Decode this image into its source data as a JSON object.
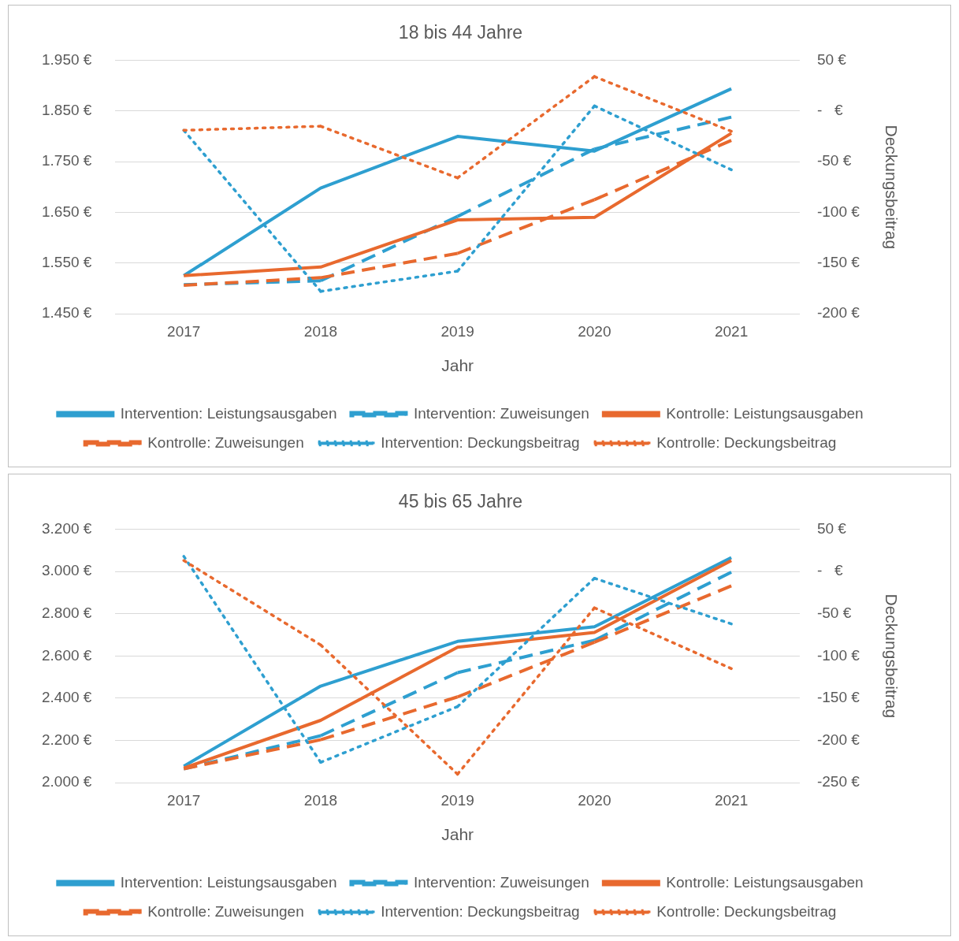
{
  "chart_data": [
    {
      "type": "line",
      "title": "18 bis 44 Jahre",
      "xlabel": "Jahr",
      "y2label": "Deckungsbeitrag",
      "categories": [
        "2017",
        "2018",
        "2019",
        "2020",
        "2021"
      ],
      "series": [
        {
          "name": "Intervention: Leistungsausgaben",
          "color": "#2e9fd0",
          "line_style": "solid",
          "values": [
            1525,
            1698,
            1800,
            1771,
            1894
          ]
        },
        {
          "name": "Intervention: Zuweisungen",
          "color": "#2e9fd0",
          "line_style": "dashed",
          "values": [
            1507,
            1515,
            1642,
            1775,
            1838
          ]
        },
        {
          "name": "Kontrolle: Leistungsausgaben",
          "color": "#e8692e",
          "line_style": "solid",
          "values": [
            1525,
            1542,
            1635,
            1640,
            1806
          ]
        },
        {
          "name": "Kontrolle: Zuweisungen",
          "color": "#e8692e",
          "line_style": "dashed",
          "values": [
            1506,
            1521,
            1569,
            1675,
            1792
          ]
        },
        {
          "name": "Intervention: Deckungsbeitrag",
          "color": "#2e9fd0",
          "line_style": "dotted",
          "axis": "y2",
          "values": [
            -19,
            -178,
            -158,
            5,
            -58
          ]
        },
        {
          "name": "Kontrolle: Deckungsbeitrag",
          "color": "#e8692e",
          "line_style": "dotted",
          "axis": "y2",
          "values": [
            -19,
            -15,
            -66,
            34,
            -20
          ]
        }
      ],
      "ylim": [
        1450,
        1950
      ],
      "yticks": [
        {
          "value": 1450,
          "label": "1.450 €"
        },
        {
          "value": 1550,
          "label": "1.550 €"
        },
        {
          "value": 1650,
          "label": "1.650 €"
        },
        {
          "value": 1750,
          "label": "1.750 €"
        },
        {
          "value": 1850,
          "label": "1.850 €"
        },
        {
          "value": 1950,
          "label": "1.950 €"
        }
      ],
      "y2lim": [
        -200,
        50
      ],
      "y2ticks": [
        {
          "value": -200,
          "label": "-200 €"
        },
        {
          "value": -150,
          "label": "-150 €"
        },
        {
          "value": -100,
          "label": "-100 €"
        },
        {
          "value": -50,
          "label": "-50 €"
        },
        {
          "value": 0,
          "label": "-   €"
        },
        {
          "value": 50,
          "label": "50 €"
        }
      ],
      "grid": "y",
      "legend": "bottom",
      "marker": "none"
    },
    {
      "type": "line",
      "title": "45 bis 65 Jahre",
      "xlabel": "Jahr",
      "y2label": "Deckungsbeitrag",
      "categories": [
        "2017",
        "2018",
        "2019",
        "2020",
        "2021"
      ],
      "series": [
        {
          "name": "Intervention: Leistungsausgaben",
          "color": "#2e9fd0",
          "line_style": "solid",
          "values": [
            2078,
            2457,
            2669,
            2738,
            3066
          ]
        },
        {
          "name": "Intervention: Zuweisungen",
          "color": "#2e9fd0",
          "line_style": "dashed",
          "values": [
            2065,
            2222,
            2521,
            2674,
            2997
          ]
        },
        {
          "name": "Kontrolle: Leistungsausgaben",
          "color": "#e8692e",
          "line_style": "solid",
          "values": [
            2069,
            2295,
            2641,
            2711,
            3052
          ]
        },
        {
          "name": "Kontrolle: Zuweisungen",
          "color": "#e8692e",
          "line_style": "dashed",
          "values": [
            2065,
            2203,
            2406,
            2665,
            2932
          ]
        },
        {
          "name": "Intervention: Deckungsbeitrag",
          "color": "#2e9fd0",
          "line_style": "dotted",
          "axis": "y2",
          "values": [
            18,
            -226,
            -160,
            -8,
            -62
          ]
        },
        {
          "name": "Kontrolle: Deckungsbeitrag",
          "color": "#e8692e",
          "line_style": "dotted",
          "axis": "y2",
          "values": [
            13,
            -87,
            -240,
            -43,
            -115
          ]
        }
      ],
      "ylim": [
        2000,
        3200
      ],
      "yticks": [
        {
          "value": 2000,
          "label": "2.000 €"
        },
        {
          "value": 2200,
          "label": "2.200 €"
        },
        {
          "value": 2400,
          "label": "2.400 €"
        },
        {
          "value": 2600,
          "label": "2.600 €"
        },
        {
          "value": 2800,
          "label": "2.800 €"
        },
        {
          "value": 3000,
          "label": "3.000 €"
        },
        {
          "value": 3200,
          "label": "3.200 €"
        }
      ],
      "y2lim": [
        -250,
        50
      ],
      "y2ticks": [
        {
          "value": -250,
          "label": "-250 €"
        },
        {
          "value": -200,
          "label": "-200 €"
        },
        {
          "value": -150,
          "label": "-150 €"
        },
        {
          "value": -100,
          "label": "-100 €"
        },
        {
          "value": -50,
          "label": "-50 €"
        },
        {
          "value": 0,
          "label": "-   €"
        },
        {
          "value": 50,
          "label": "50 €"
        }
      ],
      "grid": "y",
      "legend": "bottom",
      "marker": "none"
    }
  ]
}
